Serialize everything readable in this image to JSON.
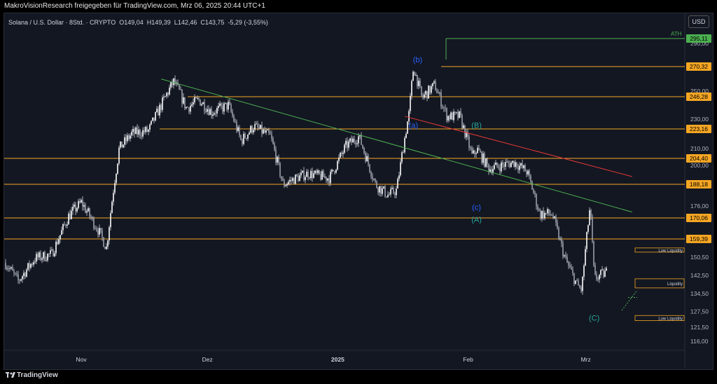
{
  "credit": "MakroVisionResearch freigegeben für TradingView.com, Mrz 06, 2025 20:44 UTC+1",
  "symbol": {
    "name": "Solana / U.S. Dollar · 8Std. · CRYPTO",
    "ohlc": "O149,04  H149,39  L142,46  C143,75  -5,29 (-3,55%)"
  },
  "currency_button": "USD",
  "footer_brand": "TradingView",
  "colors": {
    "background": "#131722",
    "candles": "#d1d4dc",
    "support_line": "#f5a623",
    "green_trendline": "#4caf50",
    "red_trendline": "#e53935",
    "wave_blue": "#2962ff",
    "wave_teal": "#26a69a"
  },
  "chart_data": {
    "type": "candlestick",
    "instrument": "SOL/USD",
    "interval": "8h",
    "x_ticks": [
      "Nov",
      "Dez",
      "2025",
      "Feb",
      "Mrz"
    ],
    "y_ticks": [
      "290,00",
      "270,00",
      "250,00",
      "230,00",
      "210,00",
      "200,00",
      "176,00",
      "150,50",
      "142,50",
      "134,50",
      "127,50",
      "121,50",
      "116,00"
    ],
    "ylim": [
      116,
      295
    ],
    "price_path": [
      {
        "date": "2024-10-14",
        "close": 148
      },
      {
        "date": "2024-10-17",
        "close": 140
      },
      {
        "date": "2024-10-21",
        "close": 150
      },
      {
        "date": "2024-10-25",
        "close": 152
      },
      {
        "date": "2024-10-29",
        "close": 171
      },
      {
        "date": "2024-11-01",
        "close": 178
      },
      {
        "date": "2024-11-05",
        "close": 164
      },
      {
        "date": "2024-11-07",
        "close": 155
      },
      {
        "date": "2024-11-10",
        "close": 210
      },
      {
        "date": "2024-11-13",
        "close": 220
      },
      {
        "date": "2024-11-17",
        "close": 222
      },
      {
        "date": "2024-11-20",
        "close": 240
      },
      {
        "date": "2024-11-23",
        "close": 258
      },
      {
        "date": "2024-11-26",
        "close": 238
      },
      {
        "date": "2024-11-29",
        "close": 244
      },
      {
        "date": "2024-12-02",
        "close": 235
      },
      {
        "date": "2024-12-06",
        "close": 240
      },
      {
        "date": "2024-12-09",
        "close": 215
      },
      {
        "date": "2024-12-12",
        "close": 225
      },
      {
        "date": "2024-12-16",
        "close": 218
      },
      {
        "date": "2024-12-19",
        "close": 188
      },
      {
        "date": "2024-12-22",
        "close": 192
      },
      {
        "date": "2024-12-25",
        "close": 195
      },
      {
        "date": "2024-12-30",
        "close": 192
      },
      {
        "date": "2025-01-03",
        "close": 212
      },
      {
        "date": "2025-01-06",
        "close": 218
      },
      {
        "date": "2025-01-10",
        "close": 188
      },
      {
        "date": "2025-01-13",
        "close": 182
      },
      {
        "date": "2025-01-15",
        "close": 185
      },
      {
        "date": "2025-01-18",
        "close": 235
      },
      {
        "date": "2025-01-19",
        "close": 270
      },
      {
        "date": "2025-01-21",
        "close": 245
      },
      {
        "date": "2025-01-24",
        "close": 255
      },
      {
        "date": "2025-01-27",
        "close": 232
      },
      {
        "date": "2025-01-30",
        "close": 232
      },
      {
        "date": "2025-02-02",
        "close": 205
      },
      {
        "date": "2025-02-03",
        "close": 210
      },
      {
        "date": "2025-02-06",
        "close": 198
      },
      {
        "date": "2025-02-09",
        "close": 200
      },
      {
        "date": "2025-02-12",
        "close": 202
      },
      {
        "date": "2025-02-15",
        "close": 196
      },
      {
        "date": "2025-02-18",
        "close": 172
      },
      {
        "date": "2025-02-21",
        "close": 172
      },
      {
        "date": "2025-02-24",
        "close": 150
      },
      {
        "date": "2025-02-27",
        "close": 138
      },
      {
        "date": "2025-02-28",
        "close": 136
      },
      {
        "date": "2025-03-02",
        "close": 176
      },
      {
        "date": "2025-03-03",
        "close": 141
      },
      {
        "date": "2025-03-06",
        "close": 144
      }
    ],
    "horizontal_levels": [
      {
        "value": 270.32,
        "label": "270,32"
      },
      {
        "value": 246.28,
        "label": "246,28"
      },
      {
        "value": 223.16,
        "label": "223,16"
      },
      {
        "value": 204.4,
        "label": "204,40"
      },
      {
        "value": 188.18,
        "label": "188,18"
      },
      {
        "value": 170.06,
        "label": "170,06"
      },
      {
        "value": 159.39,
        "label": "159,39"
      }
    ],
    "ath": {
      "value": 295.11,
      "label": "295,11",
      "text": "ATH"
    },
    "wave_labels": [
      {
        "text": "(b)",
        "date": "2025-01-20",
        "value": 274,
        "color": "wave_blue"
      },
      {
        "text": "(a)",
        "date": "2025-01-19",
        "value": 224,
        "color": "wave_blue"
      },
      {
        "text": "(B)",
        "date": "2025-02-03",
        "value": 224,
        "color": "wave_teal"
      },
      {
        "text": "(c)",
        "date": "2025-02-03",
        "value": 174,
        "color": "wave_blue"
      },
      {
        "text": "(A)",
        "date": "2025-02-03",
        "value": 168,
        "color": "wave_teal"
      },
      {
        "text": "(C)",
        "date": "2025-03-03",
        "value": 124,
        "color": "wave_teal"
      }
    ],
    "zones": [
      {
        "label": "Low Liquidity",
        "top": 155,
        "bottom": 153
      },
      {
        "label": "Liquidity",
        "top": 141,
        "bottom": 137
      },
      {
        "label": "Low Liquidity",
        "top": 126,
        "bottom": 124
      }
    ],
    "trendlines": [
      {
        "color": "green_trendline",
        "from": {
          "date": "2024-11-20",
          "value": 260
        },
        "to": {
          "date": "2025-03-12",
          "value": 173
        }
      },
      {
        "color": "red_trendline",
        "from": {
          "date": "2025-01-17",
          "value": 232
        },
        "to": {
          "date": "2025-03-12",
          "value": 193
        }
      }
    ]
  }
}
